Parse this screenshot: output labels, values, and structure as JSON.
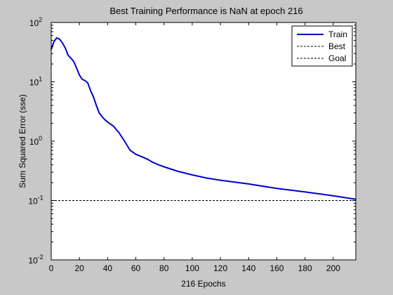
{
  "chart_data": {
    "type": "line",
    "title": "Best Training Performance is NaN at epoch 216",
    "xlabel": "216 Epochs",
    "ylabel": "Sum Squared Error  (sse)",
    "xlim": [
      0,
      216
    ],
    "ylim": [
      0.01,
      100
    ],
    "yscale": "log",
    "grid": false,
    "legend_position": "top-right",
    "x_ticks": [
      0,
      20,
      40,
      60,
      80,
      100,
      120,
      140,
      160,
      180,
      200
    ],
    "y_ticks": [
      {
        "value": 0.01,
        "base": "10",
        "exp": "-2"
      },
      {
        "value": 0.1,
        "base": "10",
        "exp": "-1"
      },
      {
        "value": 1,
        "base": "10",
        "exp": "0"
      },
      {
        "value": 10,
        "base": "10",
        "exp": "1"
      },
      {
        "value": 100,
        "base": "10",
        "exp": "2"
      }
    ],
    "series": [
      {
        "name": "Train",
        "color": "#0000cc",
        "style": "solid",
        "x": [
          0,
          2,
          4,
          6,
          8,
          10,
          12,
          14,
          16,
          18,
          20,
          22,
          24,
          26,
          28,
          30,
          32,
          34,
          36,
          38,
          40,
          44,
          48,
          52,
          56,
          60,
          64,
          68,
          72,
          76,
          80,
          90,
          100,
          110,
          120,
          140,
          160,
          180,
          200,
          216
        ],
        "y": [
          35,
          48,
          55,
          52,
          45,
          37,
          28,
          25,
          22,
          17,
          13,
          11,
          10.5,
          9.5,
          7,
          5.5,
          4,
          3,
          2.6,
          2.3,
          2.1,
          1.8,
          1.4,
          1.0,
          0.7,
          0.6,
          0.55,
          0.5,
          0.44,
          0.4,
          0.37,
          0.31,
          0.27,
          0.24,
          0.22,
          0.19,
          0.16,
          0.14,
          0.12,
          0.105
        ]
      },
      {
        "name": "Best",
        "color": "#000000",
        "style": "dashed",
        "x": [],
        "y": []
      },
      {
        "name": "Goal",
        "color": "#000000",
        "style": "dashed",
        "x": [
          0,
          216
        ],
        "y": [
          0.1,
          0.1
        ]
      }
    ]
  }
}
